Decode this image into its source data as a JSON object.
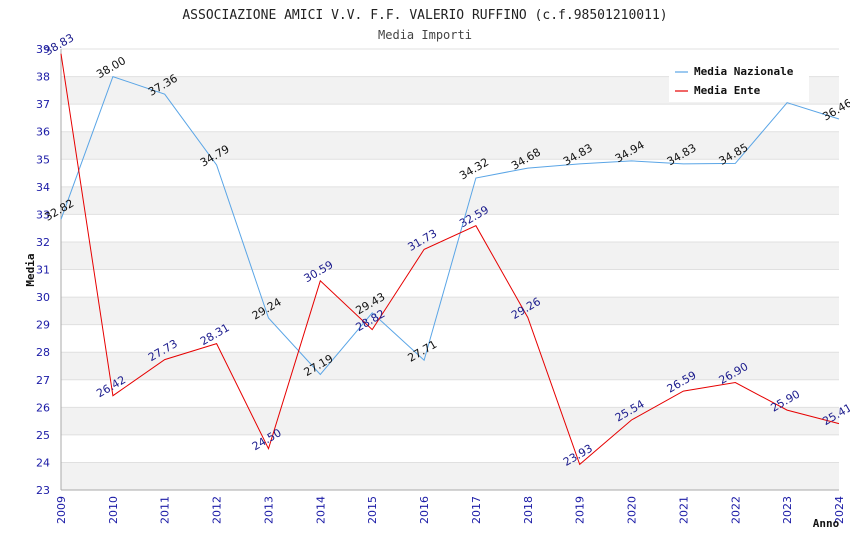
{
  "chart_data": {
    "type": "line",
    "title": "ASSOCIAZIONE AMICI V.V. F.F. VALERIO RUFFINO (c.f.98501210011)",
    "subtitle": "Media Importi",
    "xlabel": "Anno",
    "ylabel": "Media",
    "ylim": [
      23,
      39
    ],
    "yticks": [
      23,
      24,
      25,
      26,
      27,
      28,
      29,
      30,
      31,
      32,
      33,
      34,
      35,
      36,
      37,
      38,
      39
    ],
    "categories": [
      "2009",
      "2010",
      "2011",
      "2012",
      "2013",
      "2014",
      "2015",
      "2016",
      "2017",
      "2018",
      "2019",
      "2020",
      "2021",
      "2022",
      "2023",
      "2024"
    ],
    "legend_position": "top-right",
    "series": [
      {
        "name": "Media Nazionale",
        "color": "#5aa5e6",
        "values": [
          32.82,
          38.0,
          37.36,
          34.79,
          29.24,
          27.19,
          29.43,
          27.71,
          34.32,
          34.68,
          34.83,
          34.94,
          34.83,
          34.85,
          37.05,
          36.46
        ],
        "labels": [
          "32.82",
          "38.00",
          "37.36",
          "34.79",
          "29.24",
          "27.19",
          "29.43",
          "27.71",
          "34.32",
          "34.68",
          "34.83",
          "34.94",
          "34.83",
          "34.85",
          null,
          "36.46"
        ]
      },
      {
        "name": "Media Ente",
        "color": "#e60000",
        "values": [
          38.83,
          26.42,
          27.73,
          28.31,
          24.5,
          30.59,
          28.82,
          31.73,
          32.59,
          29.26,
          23.93,
          25.54,
          26.59,
          26.9,
          25.9,
          25.41
        ],
        "labels": [
          "38.83",
          "26.42",
          "27.73",
          "28.31",
          "24.50",
          "30.59",
          "28.82",
          "31.73",
          "32.59",
          "29.26",
          "23.93",
          "25.54",
          "26.59",
          "26.90",
          "25.90",
          "25.41"
        ]
      }
    ]
  }
}
